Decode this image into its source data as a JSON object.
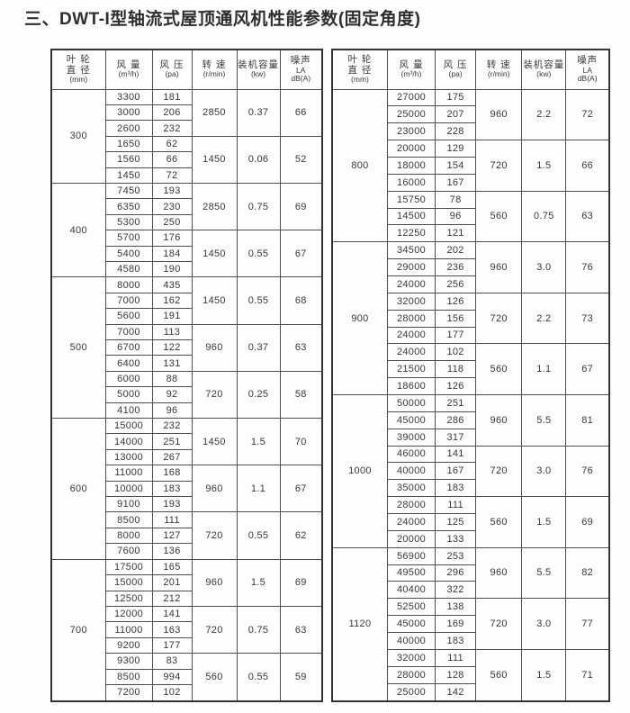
{
  "page": {
    "title": "三、DWT-I型轴流式屋顶通风机性能参数(固定角度)"
  },
  "colors": {
    "text": "#3a3a3a",
    "border": "#4d4d4d",
    "outer_border": "#333333",
    "background": "#fdfdfd"
  },
  "columns": [
    {
      "id": "diameter",
      "lines": [
        "叶 轮",
        "直 径",
        "(mm)"
      ]
    },
    {
      "id": "airflow",
      "lines": [
        "风 量",
        "(m³/h)"
      ]
    },
    {
      "id": "pressure",
      "lines": [
        "风 压",
        "(pa)"
      ]
    },
    {
      "id": "speed",
      "lines": [
        "转 速",
        "(r/min)"
      ]
    },
    {
      "id": "capacity",
      "lines": [
        "装机容量",
        "(kw)"
      ]
    },
    {
      "id": "noise",
      "lines": [
        "噪声",
        "LA",
        "dB(A)"
      ]
    }
  ],
  "tables": [
    {
      "id": "left",
      "sections": [
        {
          "diameter": "300",
          "groups": [
            {
              "speed": "2850",
              "capacity": "0.37",
              "noise": "66",
              "rows": [
                [
                  "3300",
                  "181"
                ],
                [
                  "3000",
                  "206"
                ],
                [
                  "2600",
                  "232"
                ]
              ]
            },
            {
              "speed": "1450",
              "capacity": "0.06",
              "noise": "52",
              "rows": [
                [
                  "1650",
                  "62"
                ],
                [
                  "1560",
                  "66"
                ],
                [
                  "1450",
                  "72"
                ]
              ]
            }
          ]
        },
        {
          "diameter": "400",
          "groups": [
            {
              "speed": "2850",
              "capacity": "0.75",
              "noise": "69",
              "rows": [
                [
                  "7450",
                  "193"
                ],
                [
                  "6350",
                  "230"
                ],
                [
                  "5300",
                  "250"
                ]
              ]
            },
            {
              "speed": "1450",
              "capacity": "0.55",
              "noise": "67",
              "rows": [
                [
                  "5700",
                  "176"
                ],
                [
                  "5400",
                  "184"
                ],
                [
                  "4580",
                  "190"
                ]
              ]
            }
          ]
        },
        {
          "diameter": "500",
          "groups": [
            {
              "speed": "1450",
              "capacity": "0.55",
              "noise": "68",
              "rows": [
                [
                  "8000",
                  "435"
                ],
                [
                  "7000",
                  "162"
                ],
                [
                  "5600",
                  "191"
                ]
              ]
            },
            {
              "speed": "960",
              "capacity": "0.37",
              "noise": "63",
              "rows": [
                [
                  "7000",
                  "113"
                ],
                [
                  "6700",
                  "122"
                ],
                [
                  "6400",
                  "131"
                ]
              ]
            },
            {
              "speed": "720",
              "capacity": "0.25",
              "noise": "58",
              "rows": [
                [
                  "6000",
                  "88"
                ],
                [
                  "5000",
                  "92"
                ],
                [
                  "4100",
                  "96"
                ]
              ]
            }
          ]
        },
        {
          "diameter": "600",
          "groups": [
            {
              "speed": "1450",
              "capacity": "1.5",
              "noise": "70",
              "rows": [
                [
                  "15000",
                  "232"
                ],
                [
                  "14000",
                  "251"
                ],
                [
                  "13000",
                  "267"
                ]
              ]
            },
            {
              "speed": "960",
              "capacity": "1.1",
              "noise": "67",
              "rows": [
                [
                  "11000",
                  "168"
                ],
                [
                  "10000",
                  "183"
                ],
                [
                  "9100",
                  "193"
                ]
              ]
            },
            {
              "speed": "720",
              "capacity": "0.55",
              "noise": "62",
              "rows": [
                [
                  "8500",
                  "111"
                ],
                [
                  "8000",
                  "127"
                ],
                [
                  "7600",
                  "136"
                ]
              ]
            }
          ]
        },
        {
          "diameter": "700",
          "groups": [
            {
              "speed": "960",
              "capacity": "1.5",
              "noise": "69",
              "rows": [
                [
                  "17500",
                  "165"
                ],
                [
                  "15000",
                  "201"
                ],
                [
                  "12500",
                  "212"
                ]
              ]
            },
            {
              "speed": "720",
              "capacity": "0.75",
              "noise": "63",
              "rows": [
                [
                  "12000",
                  "141"
                ],
                [
                  "11000",
                  "163"
                ],
                [
                  "9200",
                  "177"
                ]
              ]
            },
            {
              "speed": "560",
              "capacity": "0.55",
              "noise": "59",
              "rows": [
                [
                  "9300",
                  "83"
                ],
                [
                  "8500",
                  "994"
                ],
                [
                  "7200",
                  "102"
                ]
              ]
            }
          ]
        }
      ]
    },
    {
      "id": "right",
      "sections": [
        {
          "diameter": "800",
          "groups": [
            {
              "speed": "960",
              "capacity": "2.2",
              "noise": "72",
              "rows": [
                [
                  "27000",
                  "175"
                ],
                [
                  "25000",
                  "207"
                ],
                [
                  "23000",
                  "228"
                ]
              ]
            },
            {
              "speed": "720",
              "capacity": "1.5",
              "noise": "66",
              "rows": [
                [
                  "20000",
                  "129"
                ],
                [
                  "18000",
                  "154"
                ],
                [
                  "16000",
                  "167"
                ]
              ]
            },
            {
              "speed": "560",
              "capacity": "0.75",
              "noise": "63",
              "rows": [
                [
                  "15750",
                  "78"
                ],
                [
                  "14500",
                  "96"
                ],
                [
                  "12250",
                  "121"
                ]
              ]
            }
          ]
        },
        {
          "diameter": "900",
          "groups": [
            {
              "speed": "960",
              "capacity": "3.0",
              "noise": "76",
              "rows": [
                [
                  "34500",
                  "202"
                ],
                [
                  "29000",
                  "236"
                ],
                [
                  "24000",
                  "256"
                ]
              ]
            },
            {
              "speed": "720",
              "capacity": "2.2",
              "noise": "73",
              "rows": [
                [
                  "32000",
                  "126"
                ],
                [
                  "28000",
                  "156"
                ],
                [
                  "24000",
                  "177"
                ]
              ]
            },
            {
              "speed": "560",
              "capacity": "1.1",
              "noise": "67",
              "rows": [
                [
                  "24000",
                  "102"
                ],
                [
                  "21500",
                  "118"
                ],
                [
                  "18600",
                  "126"
                ]
              ]
            }
          ]
        },
        {
          "diameter": "1000",
          "groups": [
            {
              "speed": "960",
              "capacity": "5.5",
              "noise": "81",
              "rows": [
                [
                  "50000",
                  "251"
                ],
                [
                  "45000",
                  "286"
                ],
                [
                  "39000",
                  "317"
                ]
              ]
            },
            {
              "speed": "720",
              "capacity": "3.0",
              "noise": "76",
              "rows": [
                [
                  "46000",
                  "141"
                ],
                [
                  "40000",
                  "167"
                ],
                [
                  "35000",
                  "183"
                ]
              ]
            },
            {
              "speed": "560",
              "capacity": "1.5",
              "noise": "69",
              "rows": [
                [
                  "28000",
                  "111"
                ],
                [
                  "24000",
                  "125"
                ],
                [
                  "20000",
                  "133"
                ]
              ]
            }
          ]
        },
        {
          "diameter": "1120",
          "groups": [
            {
              "speed": "960",
              "capacity": "5.5",
              "noise": "82",
              "rows": [
                [
                  "56900",
                  "253"
                ],
                [
                  "49500",
                  "296"
                ],
                [
                  "40400",
                  "322"
                ]
              ]
            },
            {
              "speed": "720",
              "capacity": "3.0",
              "noise": "77",
              "rows": [
                [
                  "52500",
                  "138"
                ],
                [
                  "45000",
                  "169"
                ],
                [
                  "40000",
                  "183"
                ]
              ]
            },
            {
              "speed": "560",
              "capacity": "1.5",
              "noise": "71",
              "rows": [
                [
                  "32000",
                  "111"
                ],
                [
                  "28000",
                  "128"
                ],
                [
                  "25000",
                  "142"
                ]
              ]
            }
          ]
        }
      ]
    }
  ]
}
